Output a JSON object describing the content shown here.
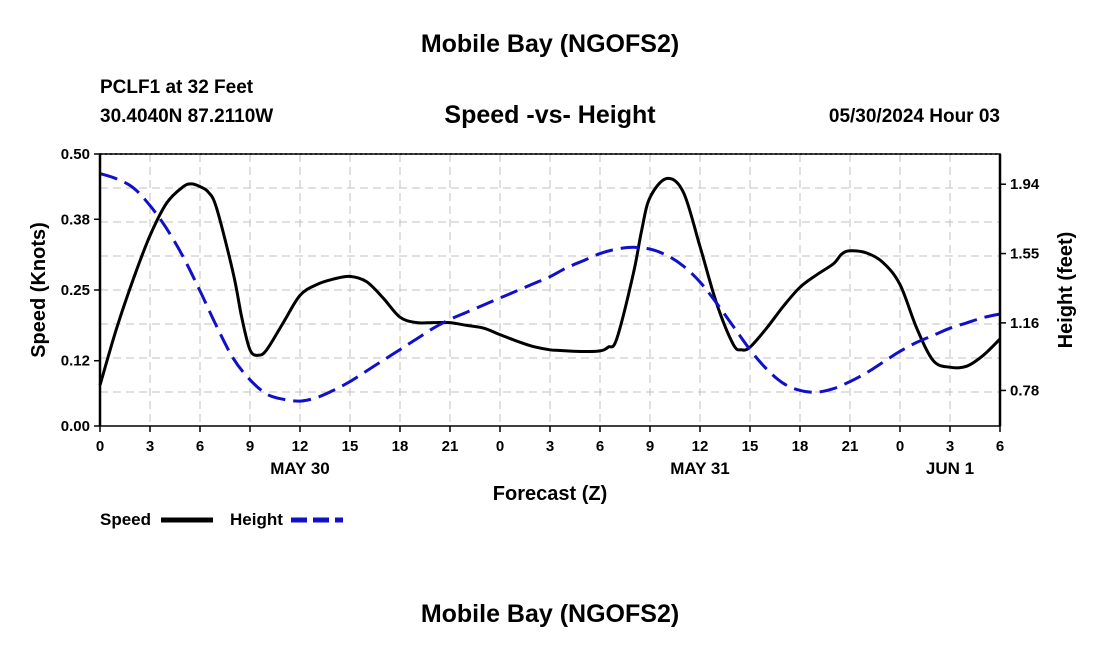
{
  "header": {
    "title": "Mobile Bay (NGOFS2)",
    "station": "PCLF1 at 32 Feet",
    "coords": "30.4040N  87.2110W",
    "chart_title": "Speed -vs- Height",
    "datetime": "05/30/2024 Hour 03"
  },
  "footer": {
    "title": "Mobile Bay (NGOFS2)"
  },
  "colors": {
    "speed": "#000000",
    "height": "#1010c8",
    "grid": "#c0c0c0"
  },
  "chart_data": {
    "type": "line",
    "title": "Speed -vs- Height",
    "xlabel": "Forecast (Z)",
    "ylabel": "Speed (Knots)",
    "y2label": "Height (feet)",
    "x_range": [
      0,
      54
    ],
    "ylim": [
      0,
      0.5
    ],
    "y2lim": [
      0.58,
      2.11
    ],
    "y_ticks": [
      "0.00",
      "0.12",
      "0.25",
      "0.38",
      "0.50"
    ],
    "y2_ticks": [
      "0.78",
      "1.16",
      "1.55",
      "1.94"
    ],
    "x_ticks": [
      "0",
      "3",
      "6",
      "9",
      "12",
      "15",
      "18",
      "21",
      "0",
      "3",
      "6",
      "9",
      "12",
      "15",
      "18",
      "21",
      "0",
      "3",
      "6"
    ],
    "date_labels": [
      {
        "text": "MAY 30",
        "hour": 12
      },
      {
        "text": "MAY 31",
        "hour": 36
      },
      {
        "text": "JUN 1",
        "hour": 51
      }
    ],
    "grid": true,
    "legend": "bottom-left",
    "series": [
      {
        "name": "Speed",
        "axis": "left",
        "style": "solid",
        "x": [
          0,
          1,
          2,
          3,
          4,
          5,
          5.5,
          6,
          6.5,
          7,
          8,
          8.5,
          9,
          9.5,
          10,
          11,
          12,
          13,
          14,
          15,
          16,
          17,
          18,
          19,
          20,
          21,
          22,
          23,
          24,
          25,
          26,
          27,
          27.5,
          28,
          29,
          30,
          30.5,
          31,
          32,
          32.5,
          33,
          34,
          35,
          36,
          37,
          38,
          38.5,
          39,
          40,
          41,
          42,
          43,
          44,
          44.5,
          45,
          46,
          47,
          48,
          49,
          50,
          51,
          52,
          53,
          54
        ],
        "y": [
          0.075,
          0.18,
          0.27,
          0.35,
          0.41,
          0.44,
          0.445,
          0.44,
          0.43,
          0.4,
          0.28,
          0.2,
          0.14,
          0.13,
          0.14,
          0.19,
          0.24,
          0.26,
          0.27,
          0.275,
          0.265,
          0.235,
          0.2,
          0.19,
          0.19,
          0.19,
          0.185,
          0.18,
          0.168,
          0.156,
          0.146,
          0.14,
          0.139,
          0.138,
          0.137,
          0.138,
          0.145,
          0.16,
          0.28,
          0.36,
          0.42,
          0.455,
          0.43,
          0.33,
          0.225,
          0.15,
          0.14,
          0.145,
          0.18,
          0.22,
          0.255,
          0.278,
          0.298,
          0.316,
          0.322,
          0.318,
          0.3,
          0.26,
          0.18,
          0.12,
          0.108,
          0.11,
          0.13,
          0.16
        ]
      },
      {
        "name": "Height",
        "axis": "right",
        "style": "dashed",
        "x": [
          0,
          1,
          2,
          3,
          4,
          5,
          6,
          7,
          8,
          9,
          10,
          11,
          12,
          13,
          14,
          15,
          16,
          17,
          18,
          19,
          20,
          21,
          22,
          23,
          24,
          25,
          26,
          27,
          28,
          29,
          30,
          31,
          32,
          33,
          34,
          35,
          36,
          37,
          38,
          39,
          40,
          41,
          42,
          43,
          44,
          45,
          46,
          47,
          48,
          49,
          50,
          51,
          52,
          53,
          54
        ],
        "y": [
          2.0,
          1.97,
          1.92,
          1.82,
          1.69,
          1.53,
          1.34,
          1.14,
          0.96,
          0.84,
          0.76,
          0.73,
          0.72,
          0.74,
          0.78,
          0.83,
          0.89,
          0.95,
          1.01,
          1.07,
          1.13,
          1.18,
          1.22,
          1.26,
          1.3,
          1.34,
          1.38,
          1.42,
          1.47,
          1.51,
          1.55,
          1.575,
          1.585,
          1.575,
          1.54,
          1.48,
          1.39,
          1.27,
          1.14,
          1.01,
          0.9,
          0.82,
          0.78,
          0.77,
          0.79,
          0.83,
          0.88,
          0.94,
          1.0,
          1.05,
          1.09,
          1.13,
          1.16,
          1.19,
          1.21
        ]
      }
    ]
  },
  "legend": {
    "speed_label": "Speed",
    "height_label": "Height"
  }
}
